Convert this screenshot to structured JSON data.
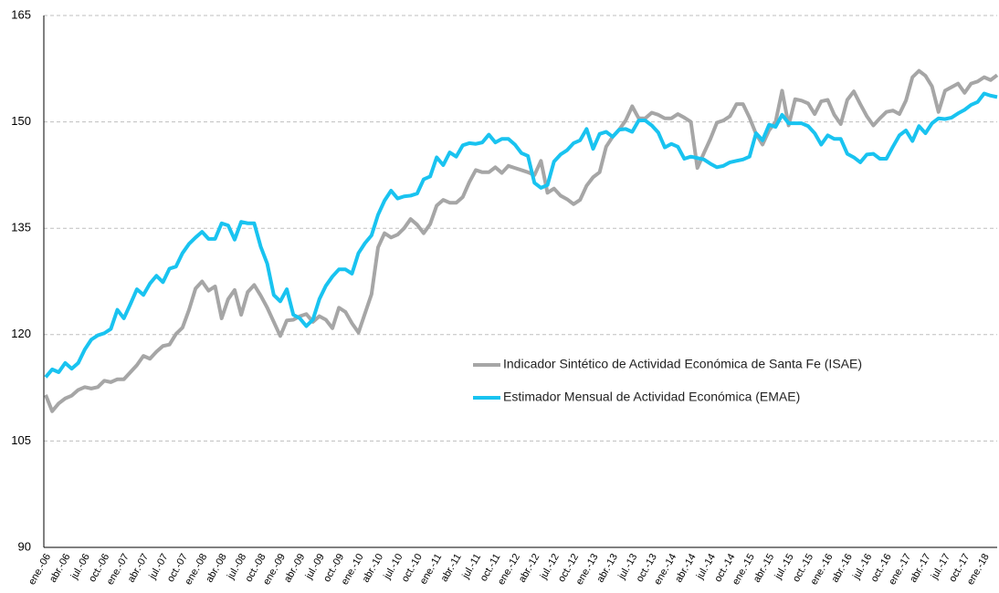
{
  "chart_data": {
    "type": "line",
    "categories": [
      "ene.-06",
      null,
      null,
      "abr.-06",
      null,
      null,
      "jul.-06",
      null,
      null,
      "oct.-06",
      null,
      null,
      "ene.-07",
      null,
      null,
      "abr.-07",
      null,
      null,
      "jul.-07",
      null,
      null,
      "oct.-07",
      null,
      null,
      "ene.-08",
      null,
      null,
      "abr.-08",
      null,
      null,
      "jul.-08",
      null,
      null,
      "oct.-08",
      null,
      null,
      "ene.-09",
      null,
      null,
      "abr.-09",
      null,
      null,
      "jul.-09",
      null,
      null,
      "oct.-09",
      null,
      null,
      "ene.-10",
      null,
      null,
      "abr.-10",
      null,
      null,
      "jul.-10",
      null,
      null,
      "oct.-10",
      null,
      null,
      "ene.-11",
      null,
      null,
      "abr.-11",
      null,
      null,
      "jul.-11",
      null,
      null,
      "oct.-11",
      null,
      null,
      "ene.-12",
      null,
      null,
      "abr.-12",
      null,
      null,
      "jul.-12",
      null,
      null,
      "oct.-12",
      null,
      null,
      "ene.-13",
      null,
      null,
      "abr.-13",
      null,
      null,
      "jul.-13",
      null,
      null,
      "oct.-13",
      null,
      null,
      "ene.-14",
      null,
      null,
      "abr.-14",
      null,
      null,
      "jul.-14",
      null,
      null,
      "oct.-14",
      null,
      null,
      "ene.-15",
      null,
      null,
      "abr.-15",
      null,
      null,
      "jul.-15",
      null,
      null,
      "oct.-15",
      null,
      null,
      "ene.-16",
      null,
      null,
      "abr.-16",
      null,
      null,
      "jul.-16",
      null,
      null,
      "oct.-16",
      null,
      null,
      "ene.-17",
      null,
      null,
      "abr.-17",
      null,
      null,
      "jul.-17",
      null,
      null,
      "oct.-17",
      null,
      null,
      "ene.-18",
      null,
      null
    ],
    "series": [
      {
        "name": "Indicador Sintético de Actividad Económica de Santa Fe (ISAE)",
        "color": "#a6a6a6",
        "values": [
          111.5,
          109.2,
          110.3,
          111,
          111.4,
          112.2,
          112.6,
          112.4,
          112.6,
          113.5,
          113.3,
          113.7,
          113.7,
          114.7,
          115.7,
          117,
          116.6,
          117.6,
          118.4,
          118.6,
          120.1,
          121,
          123.5,
          126.5,
          127.5,
          126.2,
          126.8,
          122.3,
          125,
          126.3,
          122.8,
          126,
          127,
          125.5,
          123.8,
          121.8,
          119.8,
          122,
          122.1,
          122.6,
          122.9,
          121.8,
          122.6,
          122.1,
          120.9,
          123.8,
          123.2,
          121.6,
          120.3,
          123,
          125.7,
          132.3,
          134.3,
          133.7,
          134.1,
          135,
          136.3,
          135.5,
          134.3,
          135.6,
          138.2,
          139,
          138.6,
          138.6,
          139.4,
          141.5,
          143.2,
          142.9,
          142.9,
          143.6,
          142.8,
          143.8,
          143.5,
          143.2,
          142.9,
          142.5,
          144.5,
          140,
          140.6,
          139.6,
          139.1,
          138.4,
          139,
          141,
          142.2,
          142.9,
          146.5,
          147.9,
          148.9,
          150.2,
          152.2,
          150.5,
          150.5,
          151.3,
          151,
          150.5,
          150.5,
          151.1,
          150.6,
          150,
          143.5,
          145.6,
          147.6,
          149.9,
          150.2,
          150.8,
          152.5,
          152.5,
          150.6,
          148.3,
          146.8,
          148.8,
          150,
          154.4,
          149.5,
          153.2,
          153,
          152.6,
          151.1,
          152.9,
          153.1,
          151,
          149.7,
          153.1,
          154.3,
          152.5,
          150.8,
          149.5,
          150.5,
          151.4,
          151.6,
          151.1,
          153,
          156.3,
          157.2,
          156.5,
          155,
          151.4,
          154.4,
          154.9,
          155.4,
          154.1,
          155.4,
          155.7,
          156.3,
          155.9,
          156.6
        ]
      },
      {
        "name": "Estimador Mensual de Actividad Económica (EMAE)",
        "color": "#19c3f0",
        "values": [
          114,
          115.1,
          114.7,
          116,
          115.2,
          116,
          117.9,
          119.3,
          119.9,
          120.2,
          120.8,
          123.5,
          122.3,
          124.3,
          126.4,
          125.6,
          127.2,
          128.3,
          127.4,
          129.3,
          129.6,
          131.5,
          132.8,
          133.7,
          134.5,
          133.5,
          133.5,
          135.7,
          135.4,
          133.4,
          135.9,
          135.7,
          135.7,
          132.4,
          130,
          125.6,
          124.7,
          126.4,
          122.8,
          122.3,
          121.2,
          122.1,
          125,
          126.9,
          128.2,
          129.2,
          129.2,
          128.6,
          131.5,
          132.9,
          134,
          136.9,
          138.9,
          140.3,
          139.2,
          139.5,
          139.6,
          139.9,
          141.9,
          142.3,
          145,
          143.9,
          145.7,
          145.1,
          146.7,
          147,
          146.9,
          147.1,
          148.2,
          147.1,
          147.6,
          147.6,
          146.8,
          145.6,
          145.2,
          141.4,
          140.7,
          141.1,
          144.4,
          145.4,
          146,
          147,
          147.4,
          149,
          146.2,
          148.3,
          148.6,
          147.9,
          148.9,
          149,
          148.6,
          150.2,
          150.2,
          149.5,
          148.5,
          146.4,
          146.9,
          146.5,
          144.8,
          145.1,
          144.9,
          144.7,
          144.1,
          143.6,
          143.8,
          144.3,
          144.5,
          144.7,
          145.1,
          148.4,
          147.4,
          149.6,
          149.3,
          151,
          149.8,
          149.8,
          149.8,
          149.4,
          148.4,
          146.8,
          148.1,
          147.6,
          147.6,
          145.5,
          145,
          144.3,
          145.4,
          145.5,
          144.8,
          144.8,
          146.5,
          148.1,
          148.8,
          147.3,
          149.4,
          148.4,
          149.8,
          150.5,
          150.4,
          150.6,
          151.2,
          151.7,
          152.4,
          152.8,
          154,
          153.7,
          153.5
        ]
      }
    ],
    "ylim": [
      90,
      165
    ],
    "yticks": [
      90,
      105,
      120,
      135,
      150,
      165
    ],
    "grid": true
  }
}
